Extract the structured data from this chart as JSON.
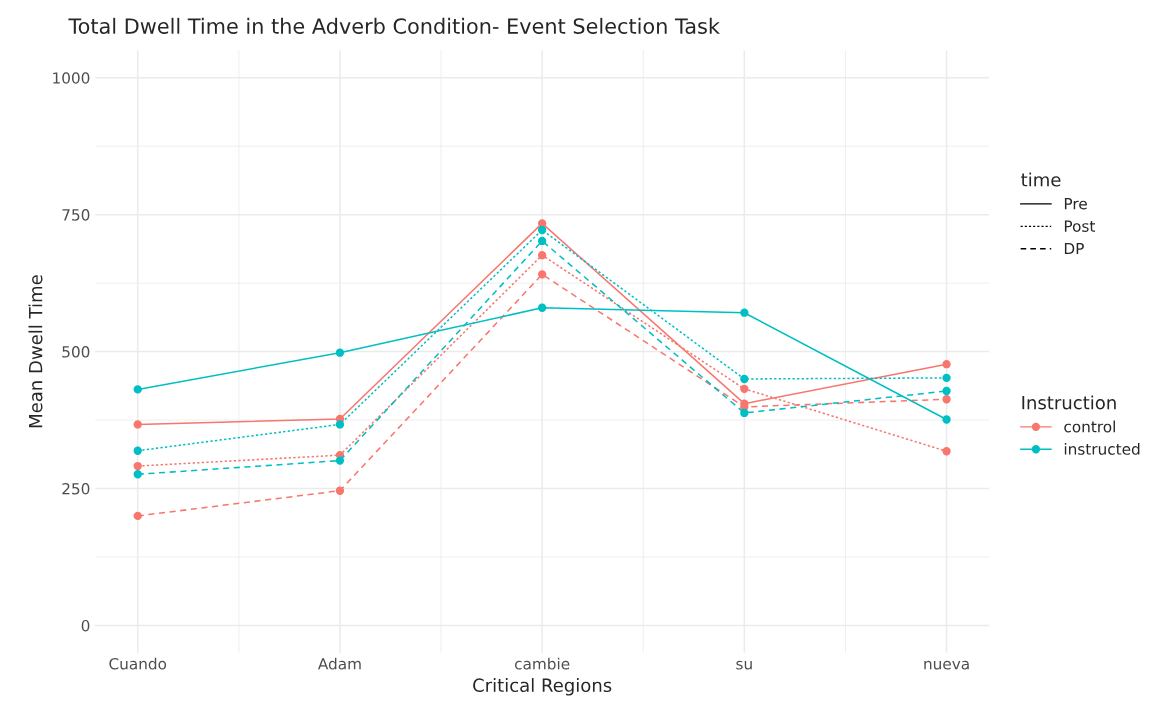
{
  "chart_data": {
    "type": "line",
    "title": "Total Dwell Time in the Adverb Condition- Event Selection Task",
    "xlabel": "Critical Regions",
    "ylabel": "Mean Dwell Time",
    "categories": [
      "Cuando",
      "Adam",
      "cambie",
      "su",
      "nueva"
    ],
    "ylim": [
      -50,
      1050
    ],
    "yticks": [
      0,
      250,
      500,
      750,
      1000
    ],
    "grid": true,
    "marker": "circle",
    "legend": "right",
    "legend_title": [
      "time",
      "Instruction"
    ],
    "annotations": [
      "Pre",
      "Post",
      "DP"
    ],
    "series": [
      {
        "name": "control",
        "color": "#f8766d",
        "line_style": "solid",
        "values": [
          367,
          377,
          734,
          405,
          477
        ]
      },
      {
        "color": "#f8766d",
        "line_style": "dotted",
        "values": [
          291,
          311,
          676,
          432,
          318
        ]
      },
      {
        "color": "#f8766d",
        "line_style": "dashed",
        "values": [
          200,
          246,
          641,
          399,
          413
        ]
      },
      {
        "name": "instructed",
        "color": "#00bfc4",
        "line_style": "solid",
        "values": [
          431,
          498,
          580,
          571,
          376
        ]
      },
      {
        "color": "#00bfc4",
        "line_style": "dotted",
        "values": [
          319,
          367,
          722,
          450,
          452
        ]
      },
      {
        "color": "#00bfc4",
        "line_style": "dashed",
        "values": [
          276,
          301,
          702,
          388,
          428
        ]
      }
    ]
  }
}
